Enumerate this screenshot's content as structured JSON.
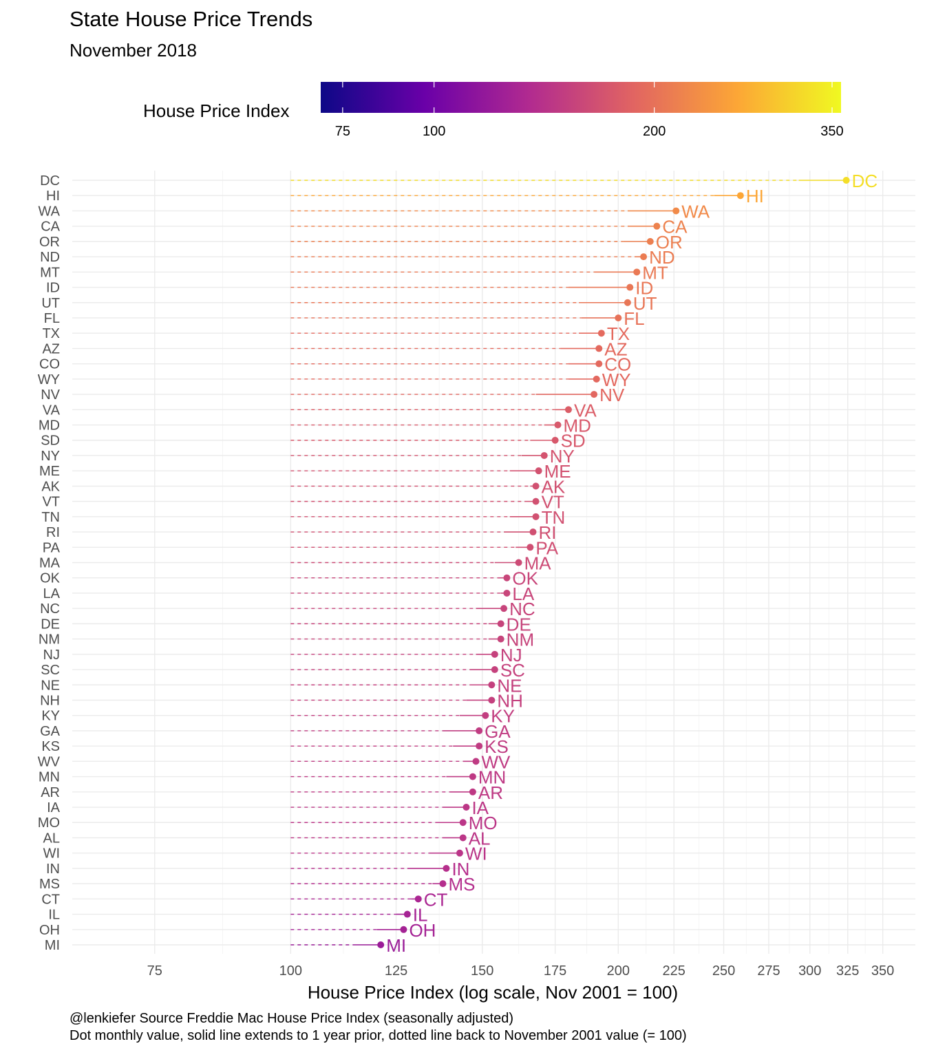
{
  "title": "State House Price Trends",
  "subtitle": "November 2018",
  "legend": {
    "title": "House Price Index",
    "ticks": [
      75,
      100,
      200,
      350
    ],
    "tick_labels": [
      "75",
      "100",
      "200",
      "350"
    ],
    "range": [
      70,
      360
    ],
    "colormap": "plasma",
    "colors": [
      "#0d0887",
      "#6a00a8",
      "#b12a90",
      "#e16462",
      "#fca636",
      "#f0f921"
    ]
  },
  "caption": {
    "line1": "@lenkiefer Source Freddie Mac House Price Index (seasonally adjusted)",
    "line2": "Dot monthly value, solid line extends to 1 year prior, dotted line back to November 2001 value (= 100)"
  },
  "chart_data": {
    "type": "lollipop",
    "xlabel": "House Price Index (log scale, Nov 2001 = 100)",
    "x_scale": "log",
    "x_ticks": [
      75,
      100,
      125,
      150,
      175,
      200,
      225,
      250,
      275,
      300,
      325,
      350
    ],
    "x_tick_labels": [
      "75",
      "100",
      "125",
      "150",
      "175",
      "200",
      "225",
      "250",
      "275",
      "300",
      "325",
      "350"
    ],
    "xlim": [
      63,
      375
    ],
    "grid": true,
    "series": [
      {
        "state": "DC",
        "value": 324,
        "year_prior": 293
      },
      {
        "state": "HI",
        "value": 259,
        "year_prior": 245
      },
      {
        "state": "WA",
        "value": 226,
        "year_prior": 204
      },
      {
        "state": "CA",
        "value": 217,
        "year_prior": 204
      },
      {
        "state": "OR",
        "value": 214,
        "year_prior": 202
      },
      {
        "state": "ND",
        "value": 211,
        "year_prior": 207
      },
      {
        "state": "MT",
        "value": 208,
        "year_prior": 190
      },
      {
        "state": "ID",
        "value": 205,
        "year_prior": 180
      },
      {
        "state": "UT",
        "value": 204,
        "year_prior": 184
      },
      {
        "state": "FL",
        "value": 200,
        "year_prior": 185
      },
      {
        "state": "TX",
        "value": 193,
        "year_prior": 184
      },
      {
        "state": "AZ",
        "value": 192,
        "year_prior": 177
      },
      {
        "state": "CO",
        "value": 192,
        "year_prior": 180
      },
      {
        "state": "WY",
        "value": 191,
        "year_prior": 180
      },
      {
        "state": "NV",
        "value": 190,
        "year_prior": 168
      },
      {
        "state": "VA",
        "value": 180,
        "year_prior": 175
      },
      {
        "state": "MD",
        "value": 176,
        "year_prior": 171
      },
      {
        "state": "SD",
        "value": 175,
        "year_prior": 166
      },
      {
        "state": "NY",
        "value": 171,
        "year_prior": 163
      },
      {
        "state": "ME",
        "value": 169,
        "year_prior": 159
      },
      {
        "state": "AK",
        "value": 168,
        "year_prior": 166
      },
      {
        "state": "VT",
        "value": 168,
        "year_prior": 164
      },
      {
        "state": "TN",
        "value": 168,
        "year_prior": 159
      },
      {
        "state": "RI",
        "value": 167,
        "year_prior": 157
      },
      {
        "state": "PA",
        "value": 166,
        "year_prior": 161
      },
      {
        "state": "MA",
        "value": 162,
        "year_prior": 154
      },
      {
        "state": "OK",
        "value": 158,
        "year_prior": 155
      },
      {
        "state": "LA",
        "value": 158,
        "year_prior": 156
      },
      {
        "state": "NC",
        "value": 157,
        "year_prior": 148
      },
      {
        "state": "DE",
        "value": 156,
        "year_prior": 152
      },
      {
        "state": "NM",
        "value": 156,
        "year_prior": 152
      },
      {
        "state": "NJ",
        "value": 154,
        "year_prior": 148
      },
      {
        "state": "SC",
        "value": 154,
        "year_prior": 146
      },
      {
        "state": "NE",
        "value": 153,
        "year_prior": 146
      },
      {
        "state": "NH",
        "value": 153,
        "year_prior": 145
      },
      {
        "state": "KY",
        "value": 151,
        "year_prior": 143
      },
      {
        "state": "GA",
        "value": 149,
        "year_prior": 138
      },
      {
        "state": "KS",
        "value": 149,
        "year_prior": 141
      },
      {
        "state": "WV",
        "value": 148,
        "year_prior": 144
      },
      {
        "state": "MN",
        "value": 147,
        "year_prior": 139
      },
      {
        "state": "AR",
        "value": 147,
        "year_prior": 140
      },
      {
        "state": "IA",
        "value": 145,
        "year_prior": 138
      },
      {
        "state": "MO",
        "value": 144,
        "year_prior": 136
      },
      {
        "state": "AL",
        "value": 144,
        "year_prior": 138
      },
      {
        "state": "WI",
        "value": 143,
        "year_prior": 134
      },
      {
        "state": "IN",
        "value": 139,
        "year_prior": 128
      },
      {
        "state": "MS",
        "value": 138,
        "year_prior": 135
      },
      {
        "state": "CT",
        "value": 131,
        "year_prior": 129
      },
      {
        "state": "IL",
        "value": 128,
        "year_prior": 125
      },
      {
        "state": "OH",
        "value": 127,
        "year_prior": 120
      },
      {
        "state": "MI",
        "value": 121,
        "year_prior": 114
      }
    ]
  }
}
